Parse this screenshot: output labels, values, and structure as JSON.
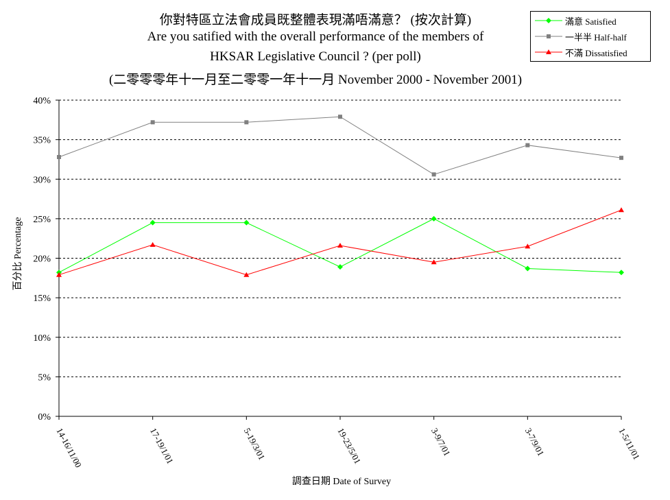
{
  "chart_data": {
    "type": "line",
    "title_lines": [
      "你對特區立法會成員既整體表現滿唔滿意？ (按次計算)",
      "Are you satified with the overall performance of the members of",
      "HKSAR Legislative Council ? (per poll)",
      "(二零零零年十一月至二零零一年十一月  November 2000 -  November 2001)"
    ],
    "xlabel": "調查日期 Date of Survey",
    "ylabel": "百分比 Percentage",
    "categories": [
      "14-16/11/00",
      "17-19/1/01",
      "5-19/3/01",
      "19-23/5/01",
      "3-9/7/01",
      "3-7/9/01",
      "1-5/11/01"
    ],
    "ylim": [
      0,
      40
    ],
    "yticks": [
      "0%",
      "5%",
      "10%",
      "15%",
      "20%",
      "25%",
      "30%",
      "35%",
      "40%"
    ],
    "grid": true,
    "legend_position": "top-right",
    "series": [
      {
        "name": "滿意 Satisfied",
        "color": "#00ff00",
        "marker": "diamond",
        "values": [
          18.2,
          24.5,
          24.5,
          18.9,
          25.0,
          18.7,
          18.2
        ]
      },
      {
        "name": "一半半 Half-half",
        "color": "#808080",
        "marker": "square",
        "values": [
          32.8,
          37.2,
          37.2,
          37.9,
          30.6,
          34.3,
          32.7
        ]
      },
      {
        "name": "不滿 Dissatisfied",
        "color": "#ff0000",
        "marker": "triangle",
        "values": [
          17.9,
          21.7,
          17.9,
          21.6,
          19.5,
          21.5,
          26.1
        ]
      }
    ]
  }
}
